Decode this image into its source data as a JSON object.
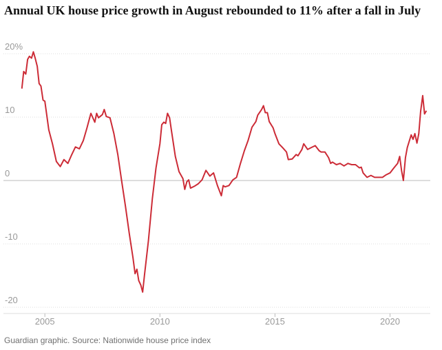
{
  "chart_data": {
    "type": "line",
    "title": "Annual UK house price growth in August rebounded to 11% after a fall in July",
    "source": "Guardian graphic. Source: Nationwide house price index",
    "xlim": [
      2003.2,
      2021.75
    ],
    "xticks": [
      2005,
      2010,
      2015,
      2020
    ],
    "ylim": [
      -20,
      20
    ],
    "yticks": [
      {
        "value": 20,
        "label": "20%"
      },
      10,
      0,
      -10,
      -20
    ],
    "grid": true,
    "series": [
      {
        "name": "Annual house price growth",
        "color": "#cc2b36",
        "x": [
          2004.0,
          2004.08,
          2004.17,
          2004.25,
          2004.33,
          2004.42,
          2004.5,
          2004.58,
          2004.67,
          2004.75,
          2004.83,
          2004.92,
          2005.0,
          2005.17,
          2005.33,
          2005.5,
          2005.67,
          2005.83,
          2006.0,
          2006.17,
          2006.33,
          2006.5,
          2006.67,
          2006.83,
          2007.0,
          2007.17,
          2007.25,
          2007.33,
          2007.5,
          2007.58,
          2007.67,
          2007.83,
          2008.0,
          2008.17,
          2008.33,
          2008.5,
          2008.67,
          2008.83,
          2008.92,
          2009.0,
          2009.08,
          2009.17,
          2009.25,
          2009.33,
          2009.5,
          2009.67,
          2009.83,
          2010.0,
          2010.08,
          2010.17,
          2010.25,
          2010.33,
          2010.42,
          2010.5,
          2010.67,
          2010.83,
          2011.0,
          2011.08,
          2011.17,
          2011.25,
          2011.33,
          2011.5,
          2011.67,
          2011.83,
          2012.0,
          2012.17,
          2012.33,
          2012.5,
          2012.67,
          2012.75,
          2012.83,
          2013.0,
          2013.17,
          2013.33,
          2013.5,
          2013.67,
          2013.83,
          2014.0,
          2014.17,
          2014.25,
          2014.42,
          2014.5,
          2014.58,
          2014.67,
          2014.75,
          2014.92,
          2015.0,
          2015.17,
          2015.33,
          2015.5,
          2015.58,
          2015.75,
          2015.92,
          2016.0,
          2016.17,
          2016.25,
          2016.42,
          2016.58,
          2016.75,
          2016.92,
          2017.0,
          2017.17,
          2017.33,
          2017.42,
          2017.5,
          2017.67,
          2017.83,
          2018.0,
          2018.17,
          2018.33,
          2018.5,
          2018.67,
          2018.75,
          2018.83,
          2019.0,
          2019.17,
          2019.33,
          2019.5,
          2019.67,
          2019.83,
          2020.0,
          2020.17,
          2020.33,
          2020.42,
          2020.5,
          2020.58,
          2020.67,
          2020.75,
          2020.92,
          2021.0,
          2021.08,
          2021.17,
          2021.25,
          2021.33,
          2021.42,
          2021.5,
          2021.58
        ],
        "values": [
          14.5,
          17.2,
          16.8,
          19.1,
          19.6,
          19.3,
          20.3,
          19.3,
          18,
          15.3,
          14.9,
          12.7,
          12.5,
          8,
          5.8,
          3.0,
          2.2,
          3.3,
          2.7,
          4.1,
          5.3,
          5,
          6.3,
          8.3,
          10.6,
          9.2,
          10.6,
          9.9,
          10.4,
          11.2,
          10.1,
          9.9,
          7.4,
          4.1,
          0.1,
          -4,
          -8.4,
          -12.2,
          -14.7,
          -14,
          -15.8,
          -16.5,
          -17.6,
          -14.9,
          -9.5,
          -2.9,
          2,
          5.8,
          8.8,
          9.2,
          9,
          10.6,
          9.9,
          7.9,
          3.8,
          1.4,
          0.3,
          -1.4,
          -0.2,
          0.1,
          -1.2,
          -0.9,
          -0.5,
          0.1,
          1.6,
          0.7,
          1.2,
          -0.8,
          -2.4,
          -0.8,
          -1,
          -0.8,
          0.1,
          0.5,
          2.7,
          4.7,
          6.3,
          8.4,
          9.3,
          10.3,
          11.2,
          11.8,
          10.7,
          10.7,
          9.3,
          8.3,
          7.4,
          5.8,
          5.2,
          4.5,
          3.3,
          3.4,
          4.1,
          3.9,
          4.9,
          5.8,
          4.9,
          5.2,
          5.5,
          4.7,
          4.5,
          4.5,
          3.6,
          2.7,
          2.9,
          2.5,
          2.7,
          2.3,
          2.7,
          2.5,
          2.5,
          2,
          2.1,
          1.2,
          0.5,
          0.8,
          0.5,
          0.5,
          0.5,
          0.9,
          1.2,
          2,
          2.7,
          3.8,
          1.6,
          0.0,
          3.6,
          5.2,
          7.2,
          6.5,
          7.4,
          5.9,
          7.4,
          10.9,
          13.4,
          10.5,
          11
        ]
      }
    ]
  }
}
